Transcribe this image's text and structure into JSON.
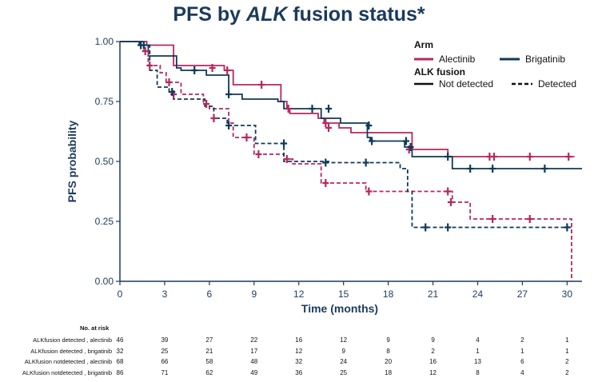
{
  "title": {
    "prefix": "PFS by ",
    "gene": "ALK",
    "suffix": " fusion status*"
  },
  "chart_data": {
    "type": "line",
    "subtype": "kaplan-meier",
    "xlabel": "Time (months)",
    "ylabel": "PFS probability",
    "xlim": [
      0,
      31
    ],
    "ylim": [
      0,
      1
    ],
    "xticks": [
      0,
      3,
      6,
      9,
      12,
      15,
      18,
      21,
      24,
      27,
      30
    ],
    "yticks": [
      0.0,
      0.25,
      0.5,
      0.75,
      1.0
    ],
    "ytick_labels": [
      "0.00",
      "0.25",
      "0.50",
      "0.75",
      "1.00"
    ],
    "legend": {
      "arm_title": "Arm",
      "arms": [
        {
          "label": "Alectinib",
          "color": "#b5285e"
        },
        {
          "label": "Brigatinib",
          "color": "#0e3a5a"
        }
      ],
      "fusion_title": "ALK fusion",
      "fusion": [
        {
          "label": "Not detected",
          "style": "solid"
        },
        {
          "label": "Detected",
          "style": "dashed"
        }
      ]
    },
    "series": [
      {
        "name": "ALK fusion not detected, alectinib",
        "color": "#b5285e",
        "dash": false,
        "steps": [
          [
            0,
            1.0
          ],
          [
            1.8,
            0.985
          ],
          [
            3.6,
            0.9
          ],
          [
            7,
            0.88
          ],
          [
            7.6,
            0.82
          ],
          [
            10.8,
            0.75
          ],
          [
            11.2,
            0.72
          ],
          [
            11.4,
            0.7
          ],
          [
            13.3,
            0.68
          ],
          [
            13.7,
            0.66
          ],
          [
            14.7,
            0.64
          ],
          [
            15.5,
            0.62
          ],
          [
            19.6,
            0.55
          ],
          [
            22,
            0.52
          ],
          [
            30.5,
            0.52
          ]
        ],
        "censors": [
          [
            6.2,
            0.89
          ],
          [
            7.2,
            0.88
          ],
          [
            9.5,
            0.82
          ],
          [
            11.3,
            0.72
          ],
          [
            13.8,
            0.66
          ],
          [
            14.0,
            0.64
          ],
          [
            19.4,
            0.55
          ],
          [
            24.8,
            0.52
          ],
          [
            25.1,
            0.52
          ],
          [
            27.5,
            0.52
          ],
          [
            30.1,
            0.52
          ]
        ]
      },
      {
        "name": "ALK fusion not detected, brigatinib",
        "color": "#0e3a5a",
        "dash": false,
        "steps": [
          [
            0,
            1.0
          ],
          [
            1.3,
            0.985
          ],
          [
            1.9,
            0.94
          ],
          [
            3.8,
            0.89
          ],
          [
            4.1,
            0.88
          ],
          [
            5.8,
            0.86
          ],
          [
            7.3,
            0.78
          ],
          [
            8.2,
            0.76
          ],
          [
            10.6,
            0.75
          ],
          [
            11.0,
            0.72
          ],
          [
            13.5,
            0.68
          ],
          [
            14.8,
            0.66
          ],
          [
            16.6,
            0.6
          ],
          [
            16.8,
            0.585
          ],
          [
            19.1,
            0.56
          ],
          [
            19.6,
            0.52
          ],
          [
            22.3,
            0.47
          ],
          [
            31,
            0.47
          ]
        ],
        "censors": [
          [
            1.4,
            0.985
          ],
          [
            5,
            0.88
          ],
          [
            7.3,
            0.78
          ],
          [
            12.9,
            0.72
          ],
          [
            14.0,
            0.72
          ],
          [
            16.7,
            0.65
          ],
          [
            16.9,
            0.585
          ],
          [
            19.2,
            0.585
          ],
          [
            19.5,
            0.56
          ],
          [
            22,
            0.52
          ],
          [
            23.5,
            0.47
          ],
          [
            25,
            0.47
          ],
          [
            28.5,
            0.47
          ]
        ]
      },
      {
        "name": "ALK fusion detected, alectinib",
        "color": "#b5285e",
        "dash": true,
        "steps": [
          [
            0,
            1.0
          ],
          [
            1.6,
            0.96
          ],
          [
            1.9,
            0.9
          ],
          [
            2.7,
            0.87
          ],
          [
            3.1,
            0.83
          ],
          [
            4.1,
            0.78
          ],
          [
            5.6,
            0.74
          ],
          [
            6.0,
            0.72
          ],
          [
            7.3,
            0.66
          ],
          [
            7.6,
            0.6
          ],
          [
            9.0,
            0.53
          ],
          [
            11.0,
            0.51
          ],
          [
            11.6,
            0.49
          ],
          [
            13.5,
            0.41
          ],
          [
            16.5,
            0.375
          ],
          [
            19.4,
            0.375
          ],
          [
            22.3,
            0.33
          ],
          [
            23.5,
            0.26
          ],
          [
            30.3,
            0.0
          ]
        ],
        "censors": [
          [
            1.7,
            0.96
          ],
          [
            2.0,
            0.9
          ],
          [
            3.3,
            0.83
          ],
          [
            3.6,
            0.78
          ],
          [
            5.8,
            0.74
          ],
          [
            6.3,
            0.68
          ],
          [
            8.5,
            0.6
          ],
          [
            9.3,
            0.53
          ],
          [
            11.2,
            0.51
          ],
          [
            13.8,
            0.41
          ],
          [
            16.7,
            0.375
          ],
          [
            22,
            0.375
          ],
          [
            22.2,
            0.33
          ],
          [
            25,
            0.26
          ],
          [
            27.5,
            0.26
          ]
        ]
      },
      {
        "name": "ALK fusion detected, brigatinib",
        "color": "#0e3a5a",
        "dash": true,
        "steps": [
          [
            0,
            1.0
          ],
          [
            1.5,
            0.985
          ],
          [
            2.0,
            0.88
          ],
          [
            2.5,
            0.81
          ],
          [
            3.3,
            0.79
          ],
          [
            3.6,
            0.76
          ],
          [
            5.7,
            0.73
          ],
          [
            6.3,
            0.68
          ],
          [
            7.2,
            0.65
          ],
          [
            9.1,
            0.575
          ],
          [
            11.0,
            0.5
          ],
          [
            14.0,
            0.495
          ],
          [
            18.8,
            0.47
          ],
          [
            19.3,
            0.375
          ],
          [
            19.6,
            0.225
          ],
          [
            30.3,
            0.225
          ]
        ],
        "censors": [
          [
            1.6,
            0.985
          ],
          [
            3.5,
            0.79
          ],
          [
            7.3,
            0.65
          ],
          [
            11.0,
            0.575
          ],
          [
            13.8,
            0.495
          ],
          [
            16.5,
            0.495
          ],
          [
            20.5,
            0.225
          ],
          [
            22,
            0.225
          ],
          [
            30.0,
            0.225
          ]
        ]
      }
    ],
    "number_at_risk": {
      "title": "No. at risk",
      "rows": [
        {
          "label": "ALKfusion detected , alectinib",
          "values": [
            46,
            39,
            27,
            22,
            16,
            12,
            9,
            9,
            4,
            2,
            1
          ]
        },
        {
          "label": "ALKfusion detected , brigatinib",
          "values": [
            32,
            25,
            21,
            17,
            12,
            9,
            8,
            2,
            1,
            1,
            1
          ]
        },
        {
          "label": "ALKfusion notdetected , alectinib",
          "values": [
            68,
            66,
            58,
            48,
            32,
            24,
            20,
            16,
            13,
            6,
            2
          ]
        },
        {
          "label": "ALKfusion notdetected , brigatinib",
          "values": [
            86,
            71,
            62,
            49,
            36,
            25,
            18,
            12,
            8,
            4,
            2
          ]
        }
      ]
    }
  }
}
